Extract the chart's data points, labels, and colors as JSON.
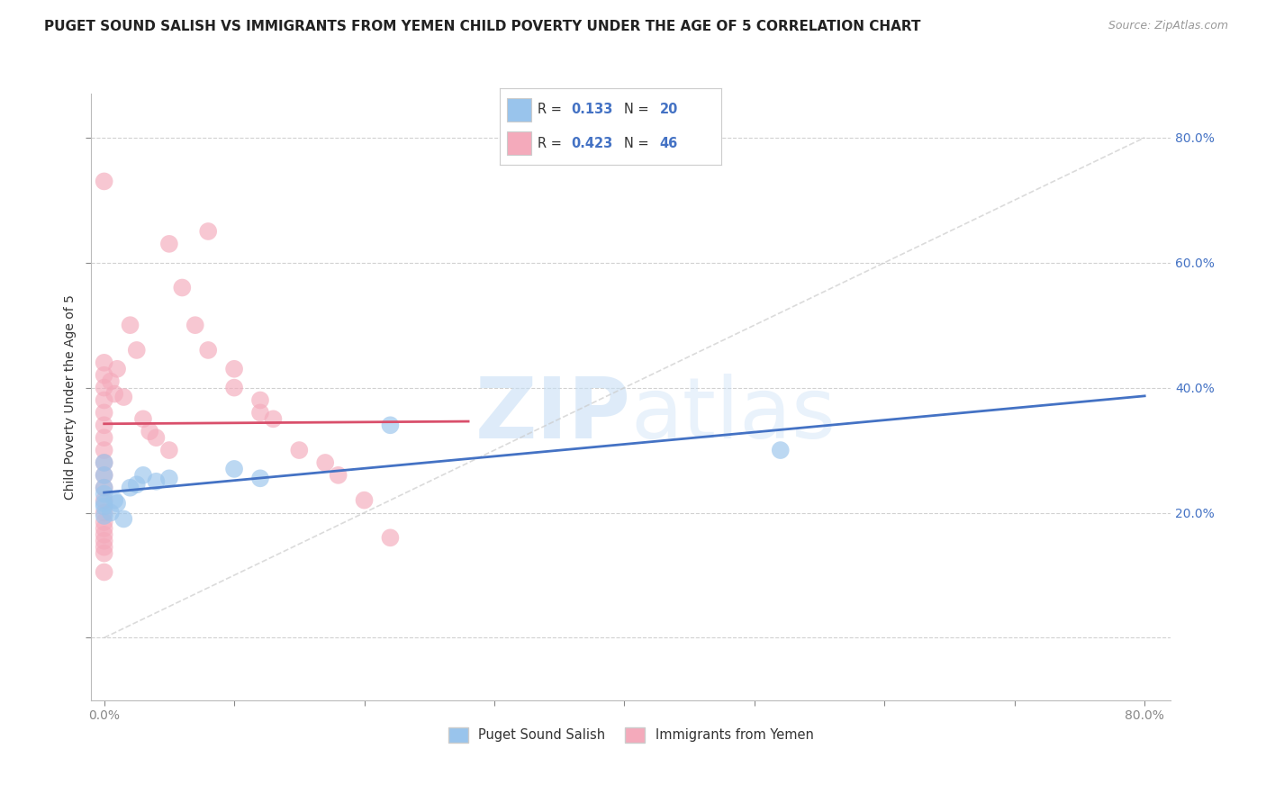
{
  "title": "PUGET SOUND SALISH VS IMMIGRANTS FROM YEMEN CHILD POVERTY UNDER THE AGE OF 5 CORRELATION CHART",
  "source": "Source: ZipAtlas.com",
  "ylabel": "Child Poverty Under the Age of 5",
  "xlabel": "",
  "blue_color": "#99C4EC",
  "pink_color": "#F4AABB",
  "blue_line_color": "#4472C4",
  "pink_line_color": "#D94F6B",
  "R_blue": "0.133",
  "N_blue": "20",
  "R_pink": "0.423",
  "N_pink": "46",
  "legend_label_blue": "Puget Sound Salish",
  "legend_label_pink": "Immigrants from Yemen",
  "watermark_zip": "ZIP",
  "watermark_atlas": "atlas",
  "background_color": "#FFFFFF",
  "grid_color": "#DDDDDD",
  "title_fontsize": 11,
  "label_fontsize": 10,
  "tick_fontsize": 10,
  "tick_color": "#4472C4",
  "accent_color": "#4472C4"
}
